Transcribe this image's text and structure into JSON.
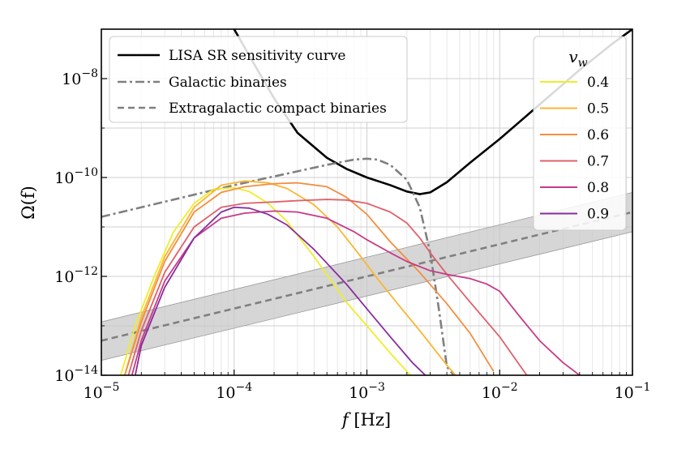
{
  "chart_data": {
    "type": "line",
    "x_scale": "log",
    "y_scale": "log",
    "xlabel_var": "f",
    "xlabel_unit": "[Hz]",
    "ylabel": "Ω(f)",
    "xlim": [
      1e-05,
      0.1
    ],
    "ylim": [
      1e-14,
      1e-07
    ],
    "grid": true,
    "x_ticks": [
      {
        "value": 1e-05,
        "base": "10",
        "exp": "−5"
      },
      {
        "value": 0.0001,
        "base": "10",
        "exp": "−4"
      },
      {
        "value": 0.001,
        "base": "10",
        "exp": "−3"
      },
      {
        "value": 0.01,
        "base": "10",
        "exp": "−2"
      },
      {
        "value": 0.1,
        "base": "10",
        "exp": "−1"
      }
    ],
    "y_ticks": [
      {
        "value": 1e-14,
        "base": "10",
        "exp": "−14"
      },
      {
        "value": 1e-12,
        "base": "10",
        "exp": "−12"
      },
      {
        "value": 1e-10,
        "base": "10",
        "exp": "−10"
      },
      {
        "value": 1e-08,
        "base": "10",
        "exp": "−8"
      }
    ],
    "reference_curves": [
      {
        "name": "LISA SR sensitivity curve",
        "style": "solid",
        "color": "#000000",
        "x": [
          0.0001,
          0.00015,
          0.0002,
          0.0003,
          0.0005,
          0.0007,
          0.001,
          0.0015,
          0.002,
          0.0025,
          0.003,
          0.004,
          0.006,
          0.01,
          0.02,
          0.04,
          0.07,
          0.1
        ],
        "y": [
          1e-07,
          1.5e-08,
          4e-09,
          8e-10,
          2.5e-10,
          1.5e-10,
          1e-10,
          7e-11,
          5.2e-11,
          4.6e-11,
          5e-11,
          8e-11,
          2e-10,
          6e-10,
          3e-09,
          1.5e-08,
          5e-08,
          1e-07
        ]
      },
      {
        "name": "Galactic binaries",
        "style": "dashdot",
        "color": "#808080",
        "x": [
          1e-05,
          0.0001,
          0.0005,
          0.0008,
          0.001,
          0.0012,
          0.0015,
          0.002,
          0.0025,
          0.003,
          0.0035,
          0.004,
          0.0045,
          0.005
        ],
        "y": [
          1.6e-11,
          7e-11,
          1.8e-10,
          2.3e-10,
          2.4e-10,
          2.3e-10,
          1.8e-10,
          9e-11,
          2.5e-11,
          3e-12,
          2e-13,
          1.5e-14,
          1e-14,
          5e-15
        ]
      },
      {
        "name": "Extragalactic compact binaries",
        "style": "dashed",
        "color": "#808080",
        "x": [
          1e-05,
          0.1
        ],
        "y": [
          5e-14,
          2e-11
        ]
      }
    ],
    "band": {
      "x": [
        1e-05,
        0.1
      ],
      "y_low": [
        2e-14,
        8e-12
      ],
      "y_high": [
        1.2e-13,
        5e-11
      ],
      "color": "#c8c8c8"
    },
    "legend_title": "v",
    "legend_title_sub": "w",
    "series": [
      {
        "name": "0.4",
        "color": "#eeee2a",
        "x": [
          1.4e-05,
          1.8e-05,
          2.5e-05,
          3.5e-05,
          5e-05,
          7e-05,
          0.0001,
          0.00013,
          0.00018,
          0.00025,
          0.0004,
          0.0007,
          0.001,
          0.0015,
          0.0022
        ],
        "y": [
          1e-14,
          1e-13,
          1e-12,
          8e-12,
          3e-11,
          5.8e-11,
          6.2e-11,
          5.2e-11,
          3e-11,
          1.3e-11,
          2.5e-12,
          3e-13,
          1e-13,
          2.8e-14,
          9e-15
        ]
      },
      {
        "name": "0.5",
        "color": "#fbb534",
        "x": [
          1.5e-05,
          2e-05,
          3e-05,
          5e-05,
          8e-05,
          0.00012,
          0.00018,
          0.00025,
          0.0004,
          0.0006,
          0.0009,
          0.0012,
          0.0017,
          0.0025,
          0.004,
          0.005
        ],
        "y": [
          1e-14,
          1.5e-13,
          2.5e-12,
          2.5e-11,
          7e-11,
          8.5e-11,
          7.8e-11,
          6e-11,
          2.8e-11,
          1e-11,
          2.5e-12,
          9e-13,
          2.8e-13,
          8e-14,
          1.6e-14,
          8e-15
        ]
      },
      {
        "name": "0.6",
        "color": "#f28f40",
        "x": [
          1.5e-05,
          2e-05,
          3e-05,
          5e-05,
          8e-05,
          0.00012,
          0.0002,
          0.0003,
          0.0005,
          0.0007,
          0.001,
          0.0015,
          0.0025,
          0.004,
          0.006,
          0.009
        ],
        "y": [
          1e-14,
          1.2e-13,
          2e-12,
          2e-11,
          5e-11,
          6.5e-11,
          7.5e-11,
          7.8e-11,
          6.5e-11,
          4e-11,
          1.8e-11,
          5e-12,
          1.2e-12,
          2.8e-13,
          7e-14,
          1.2e-14
        ]
      },
      {
        "name": "0.7",
        "color": "#df626a",
        "x": [
          1.6e-05,
          2e-05,
          3e-05,
          5e-05,
          8e-05,
          0.00012,
          0.0002,
          0.0003,
          0.0005,
          0.0007,
          0.001,
          0.0015,
          0.002,
          0.0025,
          0.003,
          0.004,
          0.006,
          0.01,
          0.016
        ],
        "y": [
          1e-14,
          8e-14,
          1.2e-12,
          1e-11,
          2.5e-11,
          3e-11,
          3.2e-11,
          3.4e-11,
          3.6e-11,
          3.5e-11,
          3e-11,
          2e-11,
          1.2e-11,
          6e-12,
          3e-12,
          1.1e-12,
          3e-13,
          6e-14,
          1e-14
        ]
      },
      {
        "name": "0.8",
        "color": "#c63b88",
        "x": [
          1.7e-05,
          2e-05,
          3e-05,
          5e-05,
          8e-05,
          0.00012,
          0.0002,
          0.0003,
          0.0005,
          0.0008,
          0.001,
          0.0015,
          0.002,
          0.003,
          0.004,
          0.006,
          0.008,
          0.01,
          0.014,
          0.02,
          0.03,
          0.04
        ],
        "y": [
          1e-14,
          5e-14,
          8e-13,
          6e-12,
          1.5e-11,
          1.9e-11,
          2.1e-11,
          2e-11,
          1.5e-11,
          8e-12,
          5.5e-12,
          3e-12,
          2e-12,
          1.3e-12,
          1.1e-12,
          9e-13,
          7e-13,
          5e-13,
          1.6e-13,
          5e-14,
          1.8e-14,
          1e-14
        ]
      },
      {
        "name": "0.9",
        "color": "#8a2c9e",
        "x": [
          1.8e-05,
          2e-05,
          3e-05,
          5e-05,
          8e-05,
          0.0001,
          0.00013,
          0.00018,
          0.00025,
          0.0004,
          0.0007,
          0.001,
          0.0015,
          0.0022,
          0.003
        ],
        "y": [
          1e-14,
          4e-14,
          6e-13,
          6e-12,
          2e-11,
          2.5e-11,
          2.4e-11,
          1.8e-11,
          1.1e-11,
          3.5e-12,
          7e-13,
          2.2e-13,
          6e-14,
          1.8e-14,
          8e-15
        ]
      }
    ]
  }
}
